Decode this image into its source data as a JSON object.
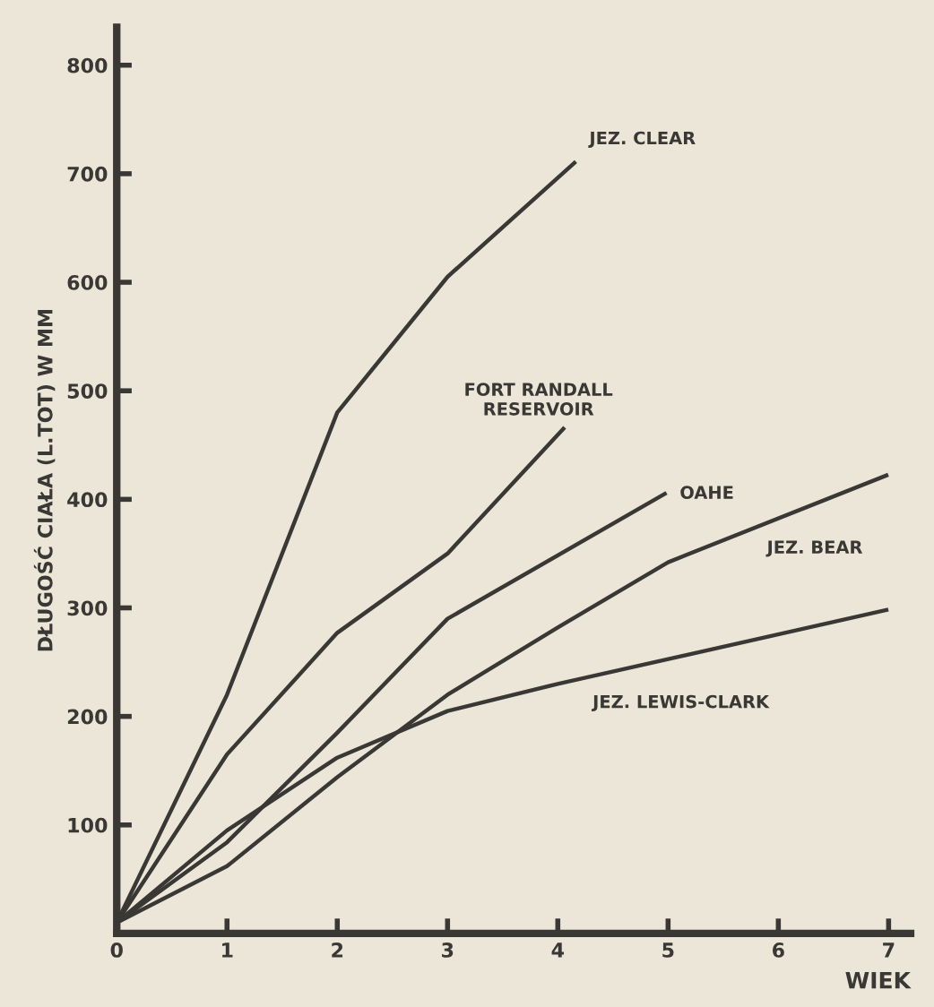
{
  "chart_data": {
    "type": "line",
    "xlabel": "WIEK",
    "ylabel": "DŁUGOŚĆ CIAŁA (L.TOT) W MM",
    "xlim": [
      0,
      7.2
    ],
    "ylim": [
      0,
      835
    ],
    "xticks": [
      0,
      1,
      2,
      3,
      4,
      5,
      6,
      7
    ],
    "yticks": [
      {
        "value": 0,
        "label": null
      },
      100,
      200,
      300,
      400,
      500,
      600,
      700,
      800
    ],
    "grid": false,
    "legend": false,
    "marker": "none",
    "line_style": "solid",
    "series": [
      {
        "name": "JEZ. CLEAR",
        "color": "#3a3835",
        "x": [
          0,
          1,
          2,
          3,
          4.15
        ],
        "values": [
          10,
          220,
          480,
          605,
          710
        ]
      },
      {
        "name": "FORT RANDALL\nRESERVOIR",
        "color": "#3a3835",
        "x": [
          0,
          1,
          2,
          3,
          4.05
        ],
        "values": [
          10,
          165,
          277,
          350,
          465
        ]
      },
      {
        "name": "OAHE",
        "color": "#3a3835",
        "x": [
          0,
          1,
          2,
          3,
          4.97
        ],
        "values": [
          10,
          84,
          185,
          290,
          405
        ]
      },
      {
        "name": "JEZ. BEAR",
        "color": "#3a3835",
        "x": [
          0,
          1,
          2,
          3,
          4,
          5,
          6.98
        ],
        "values": [
          10,
          62,
          144,
          220,
          282,
          342,
          422
        ]
      },
      {
        "name": "JEZ. LEWIS-CLARK",
        "color": "#3a3835",
        "x": [
          0,
          1,
          2,
          3,
          4,
          6.98
        ],
        "values": [
          10,
          95,
          162,
          205,
          230,
          298
        ]
      }
    ]
  }
}
